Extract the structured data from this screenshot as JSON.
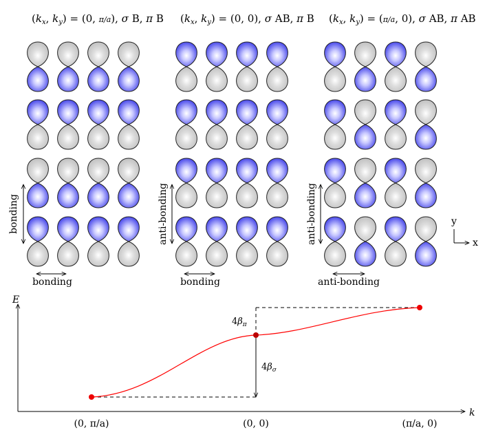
{
  "panels": [
    {
      "title": "(k_x, k_y) = (0, π/a), σ B, π B",
      "v_label": "bonding",
      "h_label": "bonding",
      "pattern": [
        [
          "down",
          "down",
          "down",
          "down"
        ],
        [
          "up",
          "up",
          "up",
          "up"
        ],
        [
          "down",
          "down",
          "down",
          "down"
        ],
        [
          "up",
          "up",
          "up",
          "up"
        ]
      ]
    },
    {
      "title": "(k_x, k_y) = (0, 0), σ AB, π B",
      "v_label": "anti-bonding",
      "h_label": "bonding",
      "pattern": [
        [
          "up",
          "up",
          "up",
          "up"
        ],
        [
          "up",
          "up",
          "up",
          "up"
        ],
        [
          "up",
          "up",
          "up",
          "up"
        ],
        [
          "up",
          "up",
          "up",
          "up"
        ]
      ]
    },
    {
      "title": "(k_x, k_y) = (π/a, 0), σ AB, π AB",
      "v_label": "anti-bonding",
      "h_label": "anti-bonding",
      "pattern": [
        [
          "up",
          "down",
          "up",
          "down"
        ],
        [
          "up",
          "down",
          "up",
          "down"
        ],
        [
          "up",
          "down",
          "up",
          "down"
        ],
        [
          "up",
          "down",
          "up",
          "down"
        ]
      ]
    }
  ],
  "axes_key": {
    "y": "y",
    "x": "x"
  },
  "band": {
    "e_label": "E",
    "k_label": "k",
    "k_ticks": [
      "(0, π/a)",
      "(0, 0)",
      "(π/a, 0)"
    ],
    "gap_pi": "4β_π",
    "gap_sigma": "4β_σ"
  },
  "colors": {
    "lobe_blue": "#3b3be8",
    "lobe_grey": "#c8c8c8",
    "curve": "#ff0000"
  }
}
